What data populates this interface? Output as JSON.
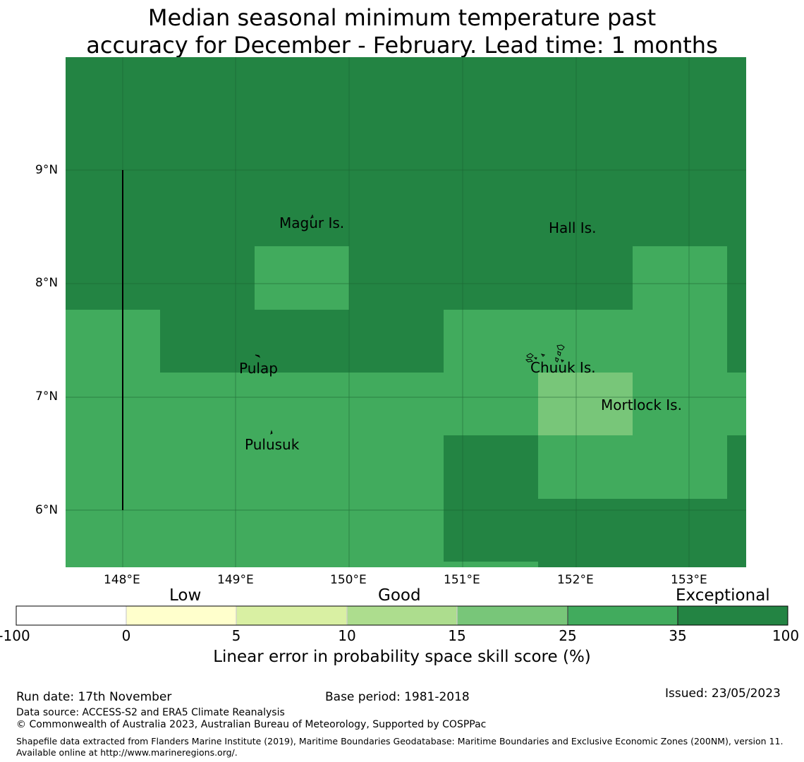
{
  "title": {
    "line1": "Median seasonal minimum temperature past",
    "line2": "accuracy for December - February. Lead time: 1 months"
  },
  "map": {
    "lat_ticks": [
      "9°N",
      "8°N",
      "7°N",
      "6°N"
    ],
    "lon_ticks": [
      "148°E",
      "149°E",
      "150°E",
      "151°E",
      "152°E",
      "153°E"
    ],
    "places": [
      "Magur Is.",
      "Hall Is.",
      "Pulap",
      "Chuuk Is.",
      "Mortlock Is.",
      "Pulusuk"
    ],
    "colors": {
      "exceptional": "#238443",
      "good_high": "#41ab5d",
      "good_mid": "#78c679"
    }
  },
  "colorbar": {
    "categories": [
      "Low",
      "Good",
      "Exceptional"
    ],
    "ticks": [
      "-100",
      "0",
      "5",
      "10",
      "15",
      "25",
      "35",
      "100"
    ],
    "bins": [
      {
        "range": "-100 to 0",
        "color": "#ffffff"
      },
      {
        "range": "0 to 5",
        "color": "#ffffcc"
      },
      {
        "range": "5 to 10",
        "color": "#d9f0a3"
      },
      {
        "range": "10 to 15",
        "color": "#addd8e"
      },
      {
        "range": "15 to 25",
        "color": "#78c679"
      },
      {
        "range": "25 to 35",
        "color": "#41ab5d"
      },
      {
        "range": "35 to 100",
        "color": "#238443"
      }
    ],
    "label": "Linear error in probability space skill score (%)"
  },
  "footer": {
    "run_date": "Run date: 17th November",
    "base_period": "Base period: 1981-2018",
    "issued": "Issued: 23/05/2023",
    "data_source": "Data source: ACCESS-S2 and ERA5 Climate Reanalysis",
    "copyright": "© Commonwealth of Australia 2023, Australian Bureau of Meteorology, Supported by COSPPac",
    "shapefile": "Shapefile data extracted from Flanders Marine Institute (2019), Maritime Boundaries Geodatabase: Maritime Boundaries and Exclusive Economic Zones (200NM), version 11. Available online at http://www.marineregions.org/."
  }
}
